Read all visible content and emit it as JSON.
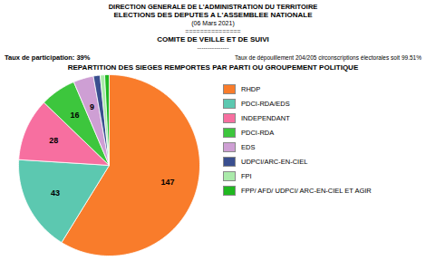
{
  "chart_data": {
    "type": "pie",
    "title": "REPARTITION DES SIEGES REMPORTES PAR PARTI OU GROUPEMENT POLITIQUE",
    "annotations": [
      "DIRECTION GENERALE DE L'ADMINISTRATION DU TERRITOIRE",
      "ELECTIONS DES DEPUTES A L'ASSEMBLEE NATIONALE",
      "(06 Mars 2021)",
      "===============",
      "COMITE DE VEILLE ET DE SUIVI",
      "---------------",
      "Taux de participation: 39%",
      "Taux de dépouillement  204/205 circonscriptions électorales  soit 99.51%"
    ],
    "categories": [
      "RHDP",
      "PDCI-RDA/EDS",
      "INDEPENDANT",
      "PDCI-RDA",
      "EDS",
      "UDPCI/ARC-EN-CIEL",
      "FPI",
      "FPP/ AFD/ UDPCI/ ARC-EN-CIEL ET AGIR"
    ],
    "values": [
      147,
      43,
      28,
      16,
      9,
      3,
      2,
      2
    ],
    "colors": [
      "#F97C2B",
      "#5CC8B0",
      "#F76FA0",
      "#3DC63D",
      "#CE9FD4",
      "#3A4F8F",
      "#AAEAAA",
      "#20B820"
    ],
    "data_labels": true,
    "value_labels": [
      "147",
      "43",
      "28",
      "16",
      "9",
      null,
      null,
      null
    ],
    "legend": "right",
    "tick_labels": false
  }
}
